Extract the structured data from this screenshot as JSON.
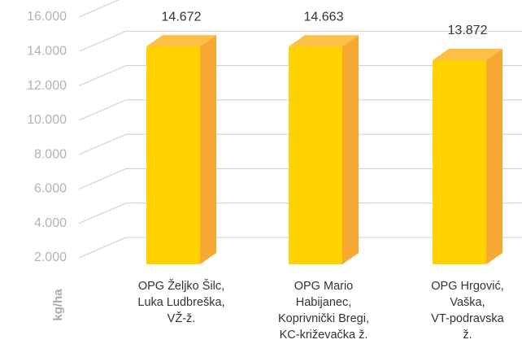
{
  "chart_data": {
    "type": "bar3d",
    "y_label": "kg/ha",
    "categories": [
      [
        "OPG Željko Šilc,",
        "Luka Ludbreška,",
        "VŽ-ž."
      ],
      [
        "OPG Mario",
        "Habijanec,",
        "Koprivnički Bregi,",
        "KC-križevačka ž."
      ],
      [
        "OPG Hrgović,",
        "Vaška,",
        "VT-podravska",
        "ž."
      ]
    ],
    "values": [
      14672,
      14663,
      13872
    ],
    "value_labels": [
      "14.672",
      "14.663",
      "13.872"
    ],
    "colors": {
      "front": "#ffd200",
      "side": "#f7a833",
      "top": "#fdbf45"
    },
    "ylim": [
      2000,
      16000
    ],
    "yticks": [
      {
        "value": 2000,
        "label": "2.000"
      },
      {
        "value": 4000,
        "label": "4.000"
      },
      {
        "value": 6000,
        "label": "6.000"
      },
      {
        "value": 8000,
        "label": "8.000"
      },
      {
        "value": 10000,
        "label": "10.000"
      },
      {
        "value": 12000,
        "label": "12.000"
      },
      {
        "value": 14000,
        "label": "14.000"
      },
      {
        "value": 16000,
        "label": "16.000"
      }
    ],
    "grid": true
  }
}
